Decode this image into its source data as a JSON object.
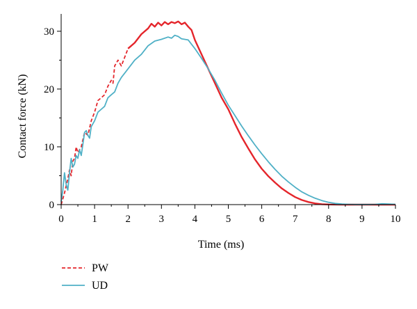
{
  "chart_data": {
    "type": "line",
    "title": "",
    "xlabel": "Time (ms)",
    "ylabel": "Contact force (kN)",
    "xlim": [
      0,
      10
    ],
    "ylim": [
      0,
      33
    ],
    "xticks": [
      0,
      1,
      2,
      3,
      4,
      5,
      6,
      7,
      8,
      9,
      10
    ],
    "yticks": [
      0,
      10,
      20,
      30
    ],
    "grid": false,
    "legend_position": "bottom-left",
    "series": [
      {
        "name": "PW",
        "color": "#e4252b",
        "style": "dashed-then-solid",
        "x": [
          0,
          0.1,
          0.2,
          0.25,
          0.3,
          0.35,
          0.4,
          0.45,
          0.5,
          0.55,
          0.6,
          0.7,
          0.8,
          0.9,
          1.0,
          1.1,
          1.2,
          1.3,
          1.4,
          1.5,
          1.55,
          1.6,
          1.7,
          1.8,
          1.9,
          2.0,
          2.2,
          2.4,
          2.6,
          2.7,
          2.8,
          2.9,
          3.0,
          3.1,
          3.2,
          3.3,
          3.4,
          3.5,
          3.6,
          3.7,
          3.8,
          3.9,
          4.0,
          4.2,
          4.4,
          4.6,
          4.8,
          5.0,
          5.2,
          5.4,
          5.6,
          5.8,
          6.0,
          6.2,
          6.4,
          6.6,
          6.8,
          7.0,
          7.2,
          7.4,
          7.6,
          7.8,
          8.0,
          8.2,
          8.5,
          9.0,
          9.5,
          10.0
        ],
        "y": [
          0,
          2.0,
          4.5,
          6.0,
          5.0,
          7.5,
          8.0,
          10.0,
          9.0,
          9.5,
          10.0,
          12.5,
          12.0,
          14.5,
          16.0,
          18.0,
          18.5,
          19.0,
          20.5,
          21.5,
          21.0,
          24.0,
          25.0,
          24.0,
          25.5,
          27.0,
          28.0,
          29.5,
          30.5,
          31.3,
          30.8,
          31.5,
          31.0,
          31.6,
          31.2,
          31.6,
          31.4,
          31.7,
          31.2,
          31.5,
          30.8,
          30.2,
          28.5,
          26.0,
          23.5,
          21.0,
          18.5,
          16.5,
          14.0,
          11.7,
          9.7,
          7.8,
          6.2,
          4.9,
          3.8,
          2.8,
          2.0,
          1.3,
          0.8,
          0.45,
          0.2,
          0.07,
          0.02,
          0.01,
          0,
          0,
          0,
          0
        ]
      },
      {
        "name": "UD",
        "color": "#4fb0c6",
        "style": "solid",
        "x": [
          0,
          0.05,
          0.1,
          0.15,
          0.2,
          0.25,
          0.3,
          0.35,
          0.4,
          0.45,
          0.5,
          0.55,
          0.6,
          0.7,
          0.75,
          0.8,
          0.85,
          0.9,
          1.0,
          1.1,
          1.2,
          1.3,
          1.4,
          1.5,
          1.6,
          1.7,
          1.8,
          2.0,
          2.2,
          2.4,
          2.6,
          2.8,
          3.0,
          3.2,
          3.3,
          3.4,
          3.5,
          3.6,
          3.8,
          4.0,
          4.2,
          4.4,
          4.6,
          4.8,
          5.0,
          5.2,
          5.4,
          5.6,
          5.8,
          6.0,
          6.2,
          6.4,
          6.6,
          6.8,
          7.0,
          7.2,
          7.4,
          7.6,
          7.8,
          8.0,
          8.2,
          8.4,
          8.6,
          8.8,
          9.0,
          9.2,
          9.4,
          9.6,
          9.8,
          10.0
        ],
        "y": [
          0.5,
          2.5,
          5.5,
          3.5,
          2.5,
          5.5,
          8.0,
          6.5,
          7.0,
          8.5,
          8.0,
          9.5,
          8.5,
          12.5,
          12.8,
          12.0,
          11.5,
          13.5,
          14.5,
          16.0,
          16.5,
          17.0,
          18.5,
          19.0,
          19.5,
          21.0,
          22.0,
          23.5,
          25.0,
          26.0,
          27.5,
          28.3,
          28.6,
          29.0,
          28.8,
          29.3,
          29.1,
          28.7,
          28.5,
          27.0,
          25.3,
          23.5,
          21.5,
          19.3,
          17.2,
          15.4,
          13.6,
          11.9,
          10.3,
          8.8,
          7.4,
          6.1,
          4.9,
          3.9,
          3.0,
          2.2,
          1.6,
          1.1,
          0.7,
          0.4,
          0.2,
          0.1,
          0.05,
          0.02,
          0.02,
          0.03,
          0.05,
          0.15,
          0.1,
          0.05
        ]
      }
    ]
  }
}
